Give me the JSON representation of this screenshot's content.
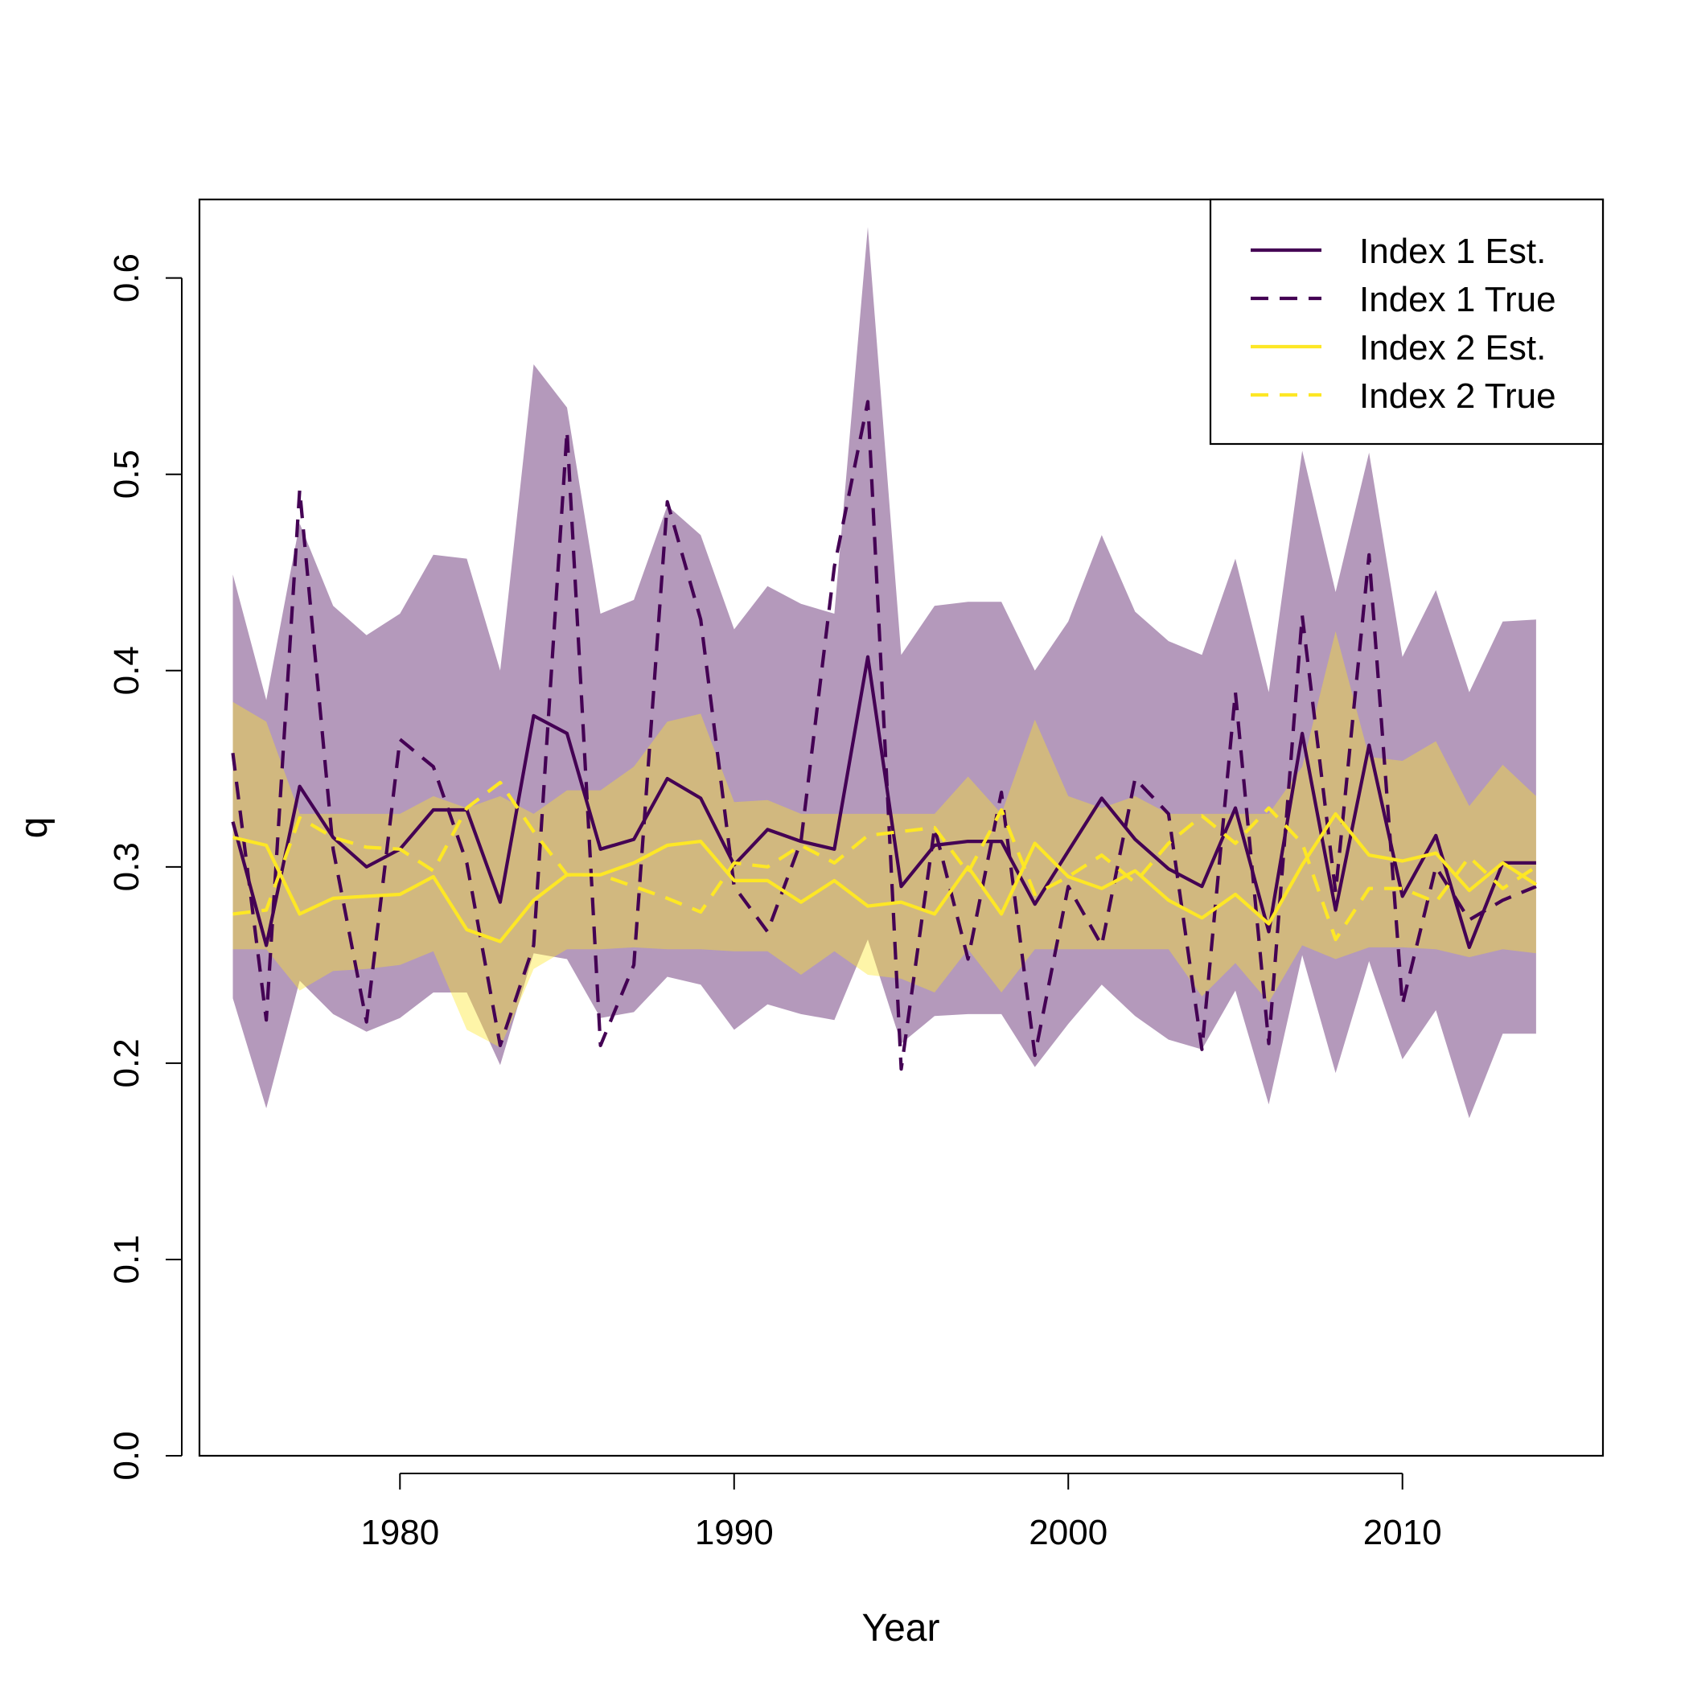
{
  "chart_data": {
    "type": "line",
    "title": "",
    "xlabel": "Year",
    "ylabel": "q",
    "xlim": [
      1974,
      2016
    ],
    "ylim": [
      0,
      0.64
    ],
    "x_ticks": [
      1980,
      1990,
      2000,
      2010
    ],
    "x_tick_labels": [
      "1980",
      "1990",
      "2000",
      "2010"
    ],
    "y_ticks": [
      0.0,
      0.1,
      0.2,
      0.3,
      0.4,
      0.5,
      0.6
    ],
    "y_tick_labels": [
      "0.0",
      "0.1",
      "0.2",
      "0.3",
      "0.4",
      "0.5",
      "0.6"
    ],
    "grid": false,
    "legend_position": "top-right",
    "x": [
      1975,
      1976,
      1977,
      1978,
      1979,
      1980,
      1981,
      1982,
      1983,
      1984,
      1985,
      1986,
      1987,
      1988,
      1989,
      1990,
      1991,
      1992,
      1993,
      1994,
      1995,
      1996,
      1997,
      1998,
      1999,
      2000,
      2001,
      2002,
      2003,
      2004,
      2005,
      2006,
      2007,
      2008,
      2009,
      2010,
      2011,
      2012,
      2013,
      2014
    ],
    "bands": [
      {
        "name": "Index 1 CI",
        "color": "#440154",
        "opacity": 0.4,
        "upper": [
          0.449,
          0.385,
          0.475,
          0.433,
          0.418,
          0.429,
          0.459,
          0.457,
          0.4,
          0.556,
          0.534,
          0.429,
          0.436,
          0.484,
          0.469,
          0.421,
          0.443,
          0.434,
          0.429,
          0.626,
          0.408,
          0.433,
          0.435,
          0.435,
          0.4,
          0.425,
          0.469,
          0.43,
          0.415,
          0.408,
          0.457,
          0.389,
          0.512,
          0.44,
          0.511,
          0.407,
          0.441,
          0.389,
          0.425,
          0.426
        ],
        "lower": [
          0.233,
          0.177,
          0.242,
          0.225,
          0.216,
          0.223,
          0.236,
          0.236,
          0.199,
          0.256,
          0.253,
          0.223,
          0.226,
          0.244,
          0.24,
          0.217,
          0.23,
          0.225,
          0.222,
          0.263,
          0.21,
          0.224,
          0.225,
          0.225,
          0.198,
          0.22,
          0.24,
          0.224,
          0.212,
          0.207,
          0.237,
          0.179,
          0.255,
          0.195,
          0.252,
          0.202,
          0.227,
          0.172,
          0.215,
          0.215
        ]
      },
      {
        "name": "Index 2 CI",
        "color": "#FDE725",
        "opacity": 0.4,
        "upper": [
          0.384,
          0.374,
          0.327,
          0.327,
          0.327,
          0.327,
          0.336,
          0.33,
          0.336,
          0.327,
          0.339,
          0.339,
          0.351,
          0.374,
          0.378,
          0.333,
          0.334,
          0.327,
          0.327,
          0.327,
          0.327,
          0.327,
          0.346,
          0.327,
          0.375,
          0.336,
          0.33,
          0.336,
          0.327,
          0.327,
          0.327,
          0.327,
          0.351,
          0.42,
          0.356,
          0.354,
          0.364,
          0.331,
          0.352,
          0.336
        ],
        "lower": [
          0.258,
          0.258,
          0.237,
          0.247,
          0.248,
          0.25,
          0.257,
          0.217,
          0.208,
          0.248,
          0.258,
          0.258,
          0.259,
          0.258,
          0.258,
          0.257,
          0.257,
          0.245,
          0.257,
          0.245,
          0.243,
          0.236,
          0.258,
          0.236,
          0.258,
          0.258,
          0.258,
          0.258,
          0.258,
          0.234,
          0.251,
          0.231,
          0.26,
          0.253,
          0.259,
          0.259,
          0.258,
          0.254,
          0.258,
          0.256
        ]
      }
    ],
    "series": [
      {
        "name": "Index 1 Est.",
        "color": "#440154",
        "dash": "solid",
        "values": [
          0.323,
          0.26,
          0.341,
          0.315,
          0.3,
          0.309,
          0.329,
          0.329,
          0.282,
          0.377,
          0.368,
          0.309,
          0.314,
          0.345,
          0.335,
          0.301,
          0.319,
          0.313,
          0.309,
          0.407,
          0.29,
          0.311,
          0.313,
          0.313,
          0.281,
          0.308,
          0.335,
          0.314,
          0.299,
          0.29,
          0.33,
          0.267,
          0.368,
          0.278,
          0.362,
          0.285,
          0.316,
          0.259,
          0.302,
          0.302
        ]
      },
      {
        "name": "Index 1 True",
        "color": "#440154",
        "dash": "dashed",
        "values": [
          0.358,
          0.222,
          0.492,
          0.309,
          0.221,
          0.365,
          0.351,
          0.302,
          0.209,
          0.26,
          0.522,
          0.209,
          0.25,
          0.486,
          0.426,
          0.29,
          0.267,
          0.313,
          0.453,
          0.537,
          0.197,
          0.32,
          0.253,
          0.338,
          0.204,
          0.29,
          0.26,
          0.345,
          0.327,
          0.207,
          0.389,
          0.21,
          0.428,
          0.287,
          0.459,
          0.23,
          0.3,
          0.273,
          0.283,
          0.29
        ]
      },
      {
        "name": "Index 2 Est.",
        "color": "#FDE725",
        "dash": "solid",
        "values": [
          0.315,
          0.311,
          0.276,
          0.284,
          0.285,
          0.286,
          0.295,
          0.268,
          0.262,
          0.283,
          0.296,
          0.296,
          0.302,
          0.311,
          0.313,
          0.293,
          0.293,
          0.282,
          0.293,
          0.28,
          0.282,
          0.276,
          0.3,
          0.276,
          0.312,
          0.295,
          0.289,
          0.298,
          0.283,
          0.274,
          0.286,
          0.271,
          0.301,
          0.327,
          0.306,
          0.303,
          0.307,
          0.288,
          0.302,
          0.291
        ]
      },
      {
        "name": "Index 2 True",
        "color": "#FDE725",
        "dash": "dashed",
        "values": [
          0.276,
          0.278,
          0.325,
          0.315,
          0.31,
          0.309,
          0.298,
          0.33,
          0.343,
          0.318,
          0.296,
          0.296,
          0.29,
          0.284,
          0.277,
          0.302,
          0.3,
          0.311,
          0.302,
          0.316,
          0.318,
          0.32,
          0.297,
          0.329,
          0.286,
          0.295,
          0.306,
          0.292,
          0.312,
          0.326,
          0.312,
          0.33,
          0.312,
          0.263,
          0.289,
          0.289,
          0.282,
          0.305,
          0.289,
          0.3
        ]
      }
    ],
    "legend": {
      "entries": [
        {
          "label": "Index 1 Est.",
          "color": "#440154",
          "dash": "solid"
        },
        {
          "label": "Index 1 True",
          "color": "#440154",
          "dash": "dashed"
        },
        {
          "label": "Index 2 Est.",
          "color": "#FDE725",
          "dash": "solid"
        },
        {
          "label": "Index 2 True",
          "color": "#FDE725",
          "dash": "dashed"
        }
      ]
    }
  }
}
